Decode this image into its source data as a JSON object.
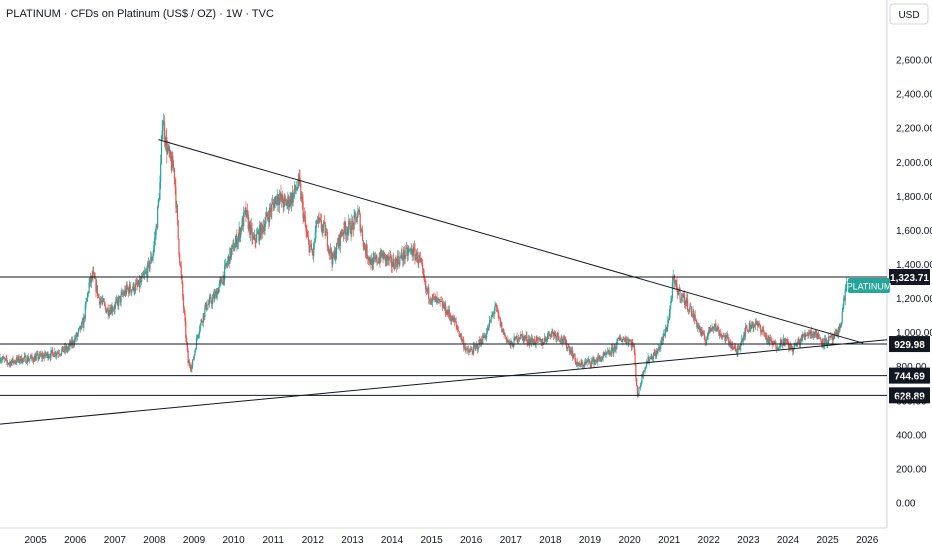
{
  "header": {
    "title": "PLATINUM · CFDs on Platinum (US$ / OZ) · 1W · TVC",
    "currency": "USD"
  },
  "colors": {
    "up": "#26a69a",
    "down": "#ef5350",
    "line": "#131722",
    "axis_text": "#131722",
    "symbol_tag": "#26a69a",
    "level_box": "#131722"
  },
  "chart_data": {
    "type": "candlestick",
    "title": "PLATINUM · CFDs on Platinum (US$ / OZ) · 1W · TVC",
    "ylabel": "USD",
    "xlim": [
      2004.1,
      2026.5
    ],
    "ylim": [
      -150,
      2950
    ],
    "x_ticks": [
      2005,
      2006,
      2007,
      2008,
      2009,
      2010,
      2011,
      2012,
      2013,
      2014,
      2015,
      2016,
      2017,
      2018,
      2019,
      2020,
      2021,
      2022,
      2023,
      2024,
      2025,
      2026
    ],
    "x_tick_labels": [
      "2005",
      "2006",
      "2007",
      "2008",
      "2009",
      "2010",
      "2011",
      "2012",
      "2013",
      "2014",
      "2015",
      "2016",
      "2017",
      "2018",
      "2019",
      "2020",
      "2021",
      "2022",
      "2023",
      "2024",
      "2025",
      "2026"
    ],
    "y_ticks": [
      0,
      200,
      400,
      600,
      800,
      1000,
      1200,
      1400,
      1600,
      1800,
      2000,
      2200,
      2400,
      2600
    ],
    "y_tick_labels": [
      "0.00",
      "200.00",
      "400.00",
      "600.00",
      "800.00",
      "1,000.00",
      "1,200.00",
      "1,400.00",
      "1,600.00",
      "1,800.00",
      "2,000.00",
      "2,200.00",
      "2,400.00",
      "2,600.00"
    ],
    "price_path": [
      [
        2004.1,
        850
      ],
      [
        2004.3,
        820
      ],
      [
        2004.6,
        840
      ],
      [
        2004.9,
        845
      ],
      [
        2005.2,
        860
      ],
      [
        2005.5,
        880
      ],
      [
        2005.8,
        900
      ],
      [
        2006.0,
        960
      ],
      [
        2006.2,
        1050
      ],
      [
        2006.35,
        1280
      ],
      [
        2006.45,
        1330
      ],
      [
        2006.6,
        1200
      ],
      [
        2006.8,
        1130
      ],
      [
        2007.0,
        1150
      ],
      [
        2007.3,
        1250
      ],
      [
        2007.6,
        1270
      ],
      [
        2007.8,
        1350
      ],
      [
        2007.95,
        1450
      ],
      [
        2008.05,
        1620
      ],
      [
        2008.15,
        1900
      ],
      [
        2008.2,
        2270
      ],
      [
        2008.3,
        2100
      ],
      [
        2008.4,
        2000
      ],
      [
        2008.5,
        1950
      ],
      [
        2008.6,
        1550
      ],
      [
        2008.75,
        1100
      ],
      [
        2008.85,
        820
      ],
      [
        2008.95,
        800
      ],
      [
        2009.1,
        1000
      ],
      [
        2009.3,
        1150
      ],
      [
        2009.5,
        1200
      ],
      [
        2009.7,
        1300
      ],
      [
        2009.9,
        1450
      ],
      [
        2010.1,
        1550
      ],
      [
        2010.3,
        1700
      ],
      [
        2010.5,
        1530
      ],
      [
        2010.7,
        1600
      ],
      [
        2010.9,
        1700
      ],
      [
        2011.1,
        1800
      ],
      [
        2011.3,
        1750
      ],
      [
        2011.5,
        1800
      ],
      [
        2011.65,
        1880
      ],
      [
        2011.85,
        1550
      ],
      [
        2012.0,
        1450
      ],
      [
        2012.1,
        1650
      ],
      [
        2012.3,
        1600
      ],
      [
        2012.5,
        1420
      ],
      [
        2012.75,
        1600
      ],
      [
        2013.0,
        1620
      ],
      [
        2013.15,
        1700
      ],
      [
        2013.3,
        1500
      ],
      [
        2013.5,
        1400
      ],
      [
        2013.75,
        1450
      ],
      [
        2014.0,
        1400
      ],
      [
        2014.3,
        1450
      ],
      [
        2014.5,
        1480
      ],
      [
        2014.7,
        1420
      ],
      [
        2014.85,
        1250
      ],
      [
        2015.0,
        1200
      ],
      [
        2015.3,
        1150
      ],
      [
        2015.6,
        1050
      ],
      [
        2015.9,
        880
      ],
      [
        2016.1,
        900
      ],
      [
        2016.4,
        1000
      ],
      [
        2016.6,
        1150
      ],
      [
        2016.8,
        1000
      ],
      [
        2017.0,
        920
      ],
      [
        2017.2,
        980
      ],
      [
        2017.5,
        950
      ],
      [
        2017.8,
        940
      ],
      [
        2018.0,
        1000
      ],
      [
        2018.2,
        980
      ],
      [
        2018.5,
        900
      ],
      [
        2018.7,
        800
      ],
      [
        2018.9,
        820
      ],
      [
        2019.1,
        830
      ],
      [
        2019.4,
        860
      ],
      [
        2019.6,
        900
      ],
      [
        2019.75,
        960
      ],
      [
        2019.95,
        960
      ],
      [
        2020.1,
        920
      ],
      [
        2020.2,
        620
      ],
      [
        2020.35,
        780
      ],
      [
        2020.5,
        850
      ],
      [
        2020.7,
        880
      ],
      [
        2020.9,
        1000
      ],
      [
        2021.0,
        1100
      ],
      [
        2021.1,
        1300
      ],
      [
        2021.2,
        1250
      ],
      [
        2021.35,
        1200
      ],
      [
        2021.5,
        1150
      ],
      [
        2021.7,
        1050
      ],
      [
        2021.9,
        950
      ],
      [
        2022.1,
        1050
      ],
      [
        2022.3,
        990
      ],
      [
        2022.5,
        950
      ],
      [
        2022.7,
        880
      ],
      [
        2022.9,
        1000
      ],
      [
        2023.1,
        1050
      ],
      [
        2023.3,
        1030
      ],
      [
        2023.5,
        950
      ],
      [
        2023.7,
        920
      ],
      [
        2023.9,
        950
      ],
      [
        2024.1,
        900
      ],
      [
        2024.3,
        950
      ],
      [
        2024.5,
        1000
      ],
      [
        2024.7,
        990
      ],
      [
        2024.9,
        940
      ],
      [
        2025.1,
        960
      ],
      [
        2025.25,
        980
      ],
      [
        2025.35,
        1080
      ],
      [
        2025.45,
        1250
      ],
      [
        2025.5,
        1330
      ]
    ],
    "trend_lines": [
      {
        "from": [
          2008.1,
          2130
        ],
        "to": [
          2025.9,
          935
        ]
      },
      {
        "from": [
          2004.1,
          460
        ],
        "to": [
          2026.5,
          955
        ]
      }
    ],
    "levels": [
      {
        "value": 1323.71,
        "label": "1,323.71"
      },
      {
        "value": 929.98,
        "label": "929.98"
      },
      {
        "value": 744.69,
        "label": "744.69"
      },
      {
        "value": 628.89,
        "label": "628.89"
      }
    ],
    "symbol_label": "PLATINUM",
    "last_price": 1323.71
  }
}
